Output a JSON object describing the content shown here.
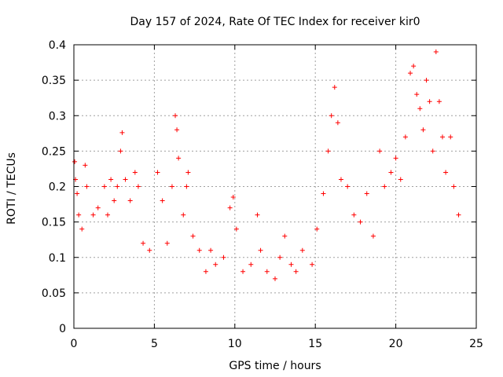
{
  "chart_data": {
    "type": "scatter",
    "title": "Day 157 of 2024, Rate Of TEC Index for receiver kir0",
    "xlabel": "GPS time / hours",
    "ylabel": "ROTI / TECUs",
    "xlim": [
      0,
      25
    ],
    "ylim": [
      0,
      0.4
    ],
    "grid": true,
    "marker": "+",
    "x_ticks": [
      0,
      5,
      10,
      15,
      20,
      25
    ],
    "x_tick_labels": [
      "0",
      "5",
      "10",
      "15",
      "20",
      "25"
    ],
    "y_ticks": [
      0,
      0.05,
      0.1,
      0.15,
      0.2,
      0.25,
      0.3,
      0.35,
      0.4
    ],
    "y_tick_labels": [
      "0",
      "0.05",
      "0.1",
      "0.15",
      "0.2",
      "0.25",
      "0.3",
      "0.35",
      "0.4"
    ],
    "series": [
      {
        "name": "ROTI",
        "color": "#ff0000",
        "points": [
          [
            0.05,
            0.235
          ],
          [
            0.1,
            0.21
          ],
          [
            0.2,
            0.19
          ],
          [
            0.3,
            0.16
          ],
          [
            0.5,
            0.14
          ],
          [
            0.7,
            0.23
          ],
          [
            0.8,
            0.2
          ],
          [
            1.2,
            0.16
          ],
          [
            1.5,
            0.17
          ],
          [
            1.9,
            0.2
          ],
          [
            2.1,
            0.16
          ],
          [
            2.3,
            0.21
          ],
          [
            2.5,
            0.18
          ],
          [
            2.7,
            0.2
          ],
          [
            2.9,
            0.25
          ],
          [
            3.0,
            0.276
          ],
          [
            3.2,
            0.21
          ],
          [
            3.5,
            0.18
          ],
          [
            3.8,
            0.22
          ],
          [
            4.0,
            0.2
          ],
          [
            4.3,
            0.12
          ],
          [
            4.7,
            0.11
          ],
          [
            5.2,
            0.22
          ],
          [
            5.5,
            0.18
          ],
          [
            5.8,
            0.12
          ],
          [
            6.1,
            0.2
          ],
          [
            6.3,
            0.3
          ],
          [
            6.4,
            0.28
          ],
          [
            6.5,
            0.24
          ],
          [
            6.8,
            0.16
          ],
          [
            7.0,
            0.2
          ],
          [
            7.1,
            0.22
          ],
          [
            7.4,
            0.13
          ],
          [
            7.8,
            0.11
          ],
          [
            8.2,
            0.08
          ],
          [
            8.5,
            0.11
          ],
          [
            8.8,
            0.09
          ],
          [
            9.3,
            0.1
          ],
          [
            9.7,
            0.17
          ],
          [
            9.9,
            0.185
          ],
          [
            10.1,
            0.14
          ],
          [
            10.5,
            0.08
          ],
          [
            11.0,
            0.09
          ],
          [
            11.4,
            0.16
          ],
          [
            11.6,
            0.11
          ],
          [
            12.0,
            0.08
          ],
          [
            12.5,
            0.07
          ],
          [
            12.8,
            0.1
          ],
          [
            13.1,
            0.13
          ],
          [
            13.5,
            0.09
          ],
          [
            13.8,
            0.08
          ],
          [
            14.2,
            0.11
          ],
          [
            14.8,
            0.09
          ],
          [
            15.1,
            0.14
          ],
          [
            15.5,
            0.19
          ],
          [
            15.8,
            0.25
          ],
          [
            16.0,
            0.3
          ],
          [
            16.2,
            0.34
          ],
          [
            16.4,
            0.29
          ],
          [
            16.6,
            0.21
          ],
          [
            17.0,
            0.2
          ],
          [
            17.4,
            0.16
          ],
          [
            17.8,
            0.15
          ],
          [
            18.2,
            0.19
          ],
          [
            18.6,
            0.13
          ],
          [
            19.0,
            0.25
          ],
          [
            19.3,
            0.2
          ],
          [
            19.7,
            0.22
          ],
          [
            20.0,
            0.24
          ],
          [
            20.3,
            0.21
          ],
          [
            20.6,
            0.27
          ],
          [
            20.9,
            0.36
          ],
          [
            21.1,
            0.37
          ],
          [
            21.3,
            0.33
          ],
          [
            21.5,
            0.31
          ],
          [
            21.7,
            0.28
          ],
          [
            21.9,
            0.35
          ],
          [
            22.1,
            0.32
          ],
          [
            22.3,
            0.25
          ],
          [
            22.5,
            0.39
          ],
          [
            22.7,
            0.32
          ],
          [
            22.9,
            0.27
          ],
          [
            23.1,
            0.22
          ],
          [
            23.4,
            0.27
          ],
          [
            23.6,
            0.2
          ],
          [
            23.9,
            0.16
          ]
        ]
      }
    ]
  }
}
